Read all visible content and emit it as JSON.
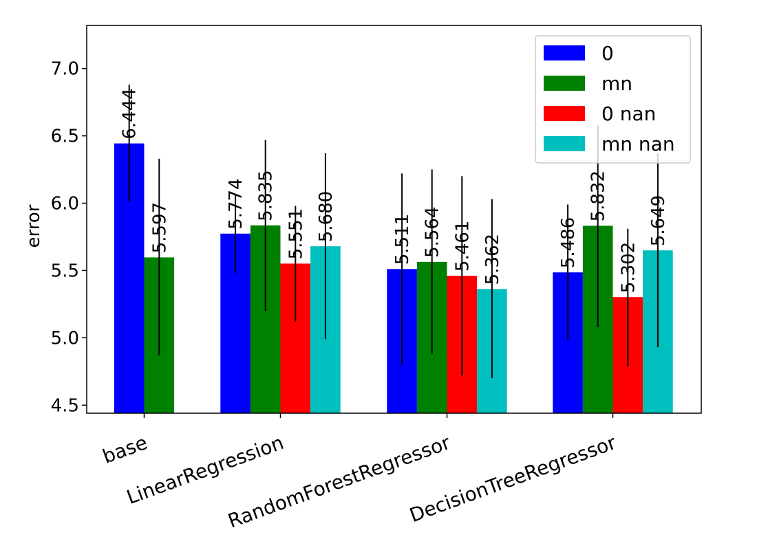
{
  "chart_data": {
    "type": "bar",
    "title": "",
    "xlabel": "",
    "ylabel": "error",
    "ylim": [
      4.44,
      7.32
    ],
    "yticks": [
      4.5,
      5.0,
      5.5,
      6.0,
      6.5,
      7.0
    ],
    "categories": [
      "base",
      "LinearRegression",
      "RandomForestRegressor",
      "DecisionTreeRegressor"
    ],
    "legend_position": "top-right",
    "grid": false,
    "series": [
      {
        "name": "0",
        "color": "#0000ff",
        "values": [
          6.444,
          5.774,
          5.511,
          5.486
        ],
        "labels": [
          "6.444",
          "5.774",
          "5.511",
          "5.486"
        ],
        "err_low": [
          6.01,
          5.48,
          4.8,
          4.98
        ],
        "err_high": [
          6.88,
          6.06,
          6.22,
          5.99
        ]
      },
      {
        "name": "mn",
        "color": "#008000",
        "values": [
          5.597,
          5.835,
          5.564,
          5.832
        ],
        "labels": [
          "5.597",
          "5.835",
          "5.564",
          "5.832"
        ],
        "err_low": [
          4.87,
          5.2,
          4.88,
          5.08
        ],
        "err_high": [
          6.33,
          6.47,
          6.25,
          6.58
        ]
      },
      {
        "name": "0 nan",
        "color": "#ff0000",
        "values": [
          null,
          5.551,
          5.461,
          5.302
        ],
        "labels": [
          "",
          "5.551",
          "5.461",
          "5.302"
        ],
        "err_low": [
          null,
          5.12,
          4.72,
          4.79
        ],
        "err_high": [
          null,
          5.98,
          6.2,
          5.81
        ]
      },
      {
        "name": "mn nan",
        "color": "#00bfbf",
        "values": [
          null,
          5.68,
          5.362,
          5.649
        ],
        "labels": [
          "",
          "5.680",
          "5.362",
          "5.649"
        ],
        "err_low": [
          null,
          4.99,
          4.7,
          4.93
        ],
        "err_high": [
          null,
          6.37,
          6.03,
          6.37
        ]
      }
    ]
  }
}
